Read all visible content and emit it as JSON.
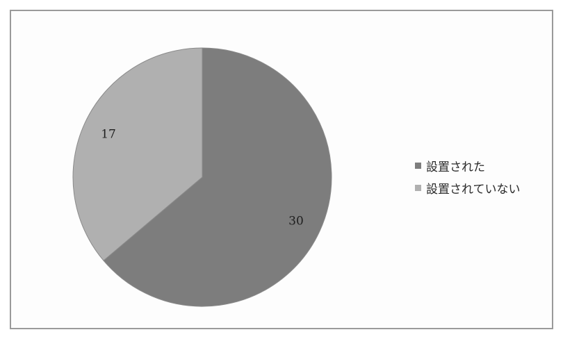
{
  "chart_data": {
    "type": "pie",
    "title": "",
    "categories": [
      "設置された",
      "設置されていない"
    ],
    "values": [
      30,
      17
    ],
    "data_labels": [
      "30",
      "17"
    ],
    "colors": [
      "#7d7d7d",
      "#b0b0b0"
    ],
    "legend_position": "right",
    "start_angle": "top, clockwise"
  }
}
